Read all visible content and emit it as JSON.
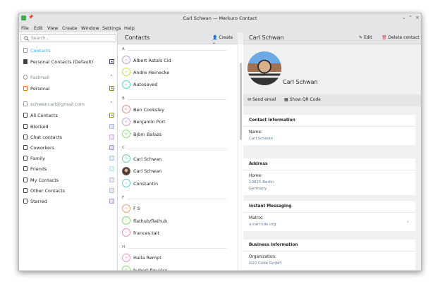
{
  "window": {
    "title": "Carl Schwan — Merkuro Contact"
  },
  "menu": [
    "File",
    "Edit",
    "View",
    "Create",
    "Window",
    "Settings",
    "Help"
  ],
  "sidebar": {
    "search_placeholder": "Search...",
    "sections": [
      {
        "label": "Contacts",
        "items": [
          {
            "label": "Personal Contacts (Default)",
            "color": "#2e3f6b"
          }
        ]
      },
      {
        "label": "Fastmail",
        "items": [
          {
            "label": "Personal",
            "color": "#8a8a10"
          }
        ]
      },
      {
        "label": "schwancarl@gmail.com",
        "items": [
          {
            "label": "All Contacts",
            "color": "#9b8d1a"
          },
          {
            "label": "Blocked",
            "color": "#a9b5ee"
          },
          {
            "label": "Chat contacts",
            "color": "#e7a3ee"
          },
          {
            "label": "Coworkers",
            "color": "#a892dd"
          },
          {
            "label": "Family",
            "color": "#a8cbe9"
          },
          {
            "label": "Friends",
            "color": "#a6eeee"
          },
          {
            "label": "My Contacts",
            "color": "#c6bfe6"
          },
          {
            "label": "Other Contacts",
            "color": "#b3c4d5"
          },
          {
            "label": "Starred",
            "color": "#b796df"
          }
        ]
      }
    ]
  },
  "list": {
    "title": "Contacts",
    "create_label": "Create",
    "groups": [
      {
        "letter": "A",
        "contacts": [
          {
            "name": "Albert Astals Cid",
            "initials": "AC",
            "color": "#c79be0"
          },
          {
            "name": "Andre Heinecke",
            "initials": "AH",
            "color": "#c7e05a"
          },
          {
            "name": "Autosaved",
            "initials": "A",
            "color": "#5fd8cf"
          }
        ]
      },
      {
        "letter": "B",
        "contacts": [
          {
            "name": "Ben Cooksley",
            "initials": "BC",
            "color": "#e98a8a"
          },
          {
            "name": "Benjamin Port",
            "initials": "BP",
            "color": "#c9a0e6"
          },
          {
            "name": "Björn Balazs",
            "initials": "BB",
            "color": "#8fdc7c"
          }
        ]
      },
      {
        "letter": "C",
        "contacts": [
          {
            "name": "Carl Schwan",
            "initials": "CS",
            "color": "#69d6a0"
          },
          {
            "name": "Carl Schwan",
            "initials": "",
            "color": "#6b5a4a",
            "photo": true
          },
          {
            "name": "Constantin",
            "initials": "C",
            "color": "#62d6cc"
          }
        ]
      },
      {
        "letter": "F",
        "contacts": [
          {
            "name": "F S",
            "initials": "FS",
            "color": "#eea27c"
          },
          {
            "name": "flathub/flathub",
            "initials": "F",
            "color": "#8edc78"
          },
          {
            "name": "frances.tait",
            "initials": "F",
            "color": "#ee8ec0"
          }
        ]
      },
      {
        "letter": "H",
        "contacts": [
          {
            "name": "Halla Rempt",
            "initials": "HR",
            "color": "#ee96c8"
          },
          {
            "name": "hubert figuière",
            "initials": "HF",
            "color": "#90dc80"
          }
        ]
      }
    ]
  },
  "detail": {
    "title": "Carl Schwan",
    "edit_label": "Edit",
    "delete_label": "Delete contact",
    "name": "Carl Schwan",
    "send_email": "Send email",
    "show_qr": "Show QR Code",
    "cards": [
      {
        "title": "Contact Information",
        "key": "Name:",
        "values": [
          "Carl Schwan"
        ]
      },
      {
        "title": "Address",
        "key": "Home:",
        "values": [
          "10825 Berlin",
          "Germany"
        ]
      },
      {
        "title": "Instant Messaging",
        "key": "Matrix:",
        "values": [
          "u/carl:kde.org"
        ]
      },
      {
        "title": "Business Information",
        "key": "Organization:",
        "values": [
          "G10 Code GmbH"
        ]
      }
    ]
  }
}
